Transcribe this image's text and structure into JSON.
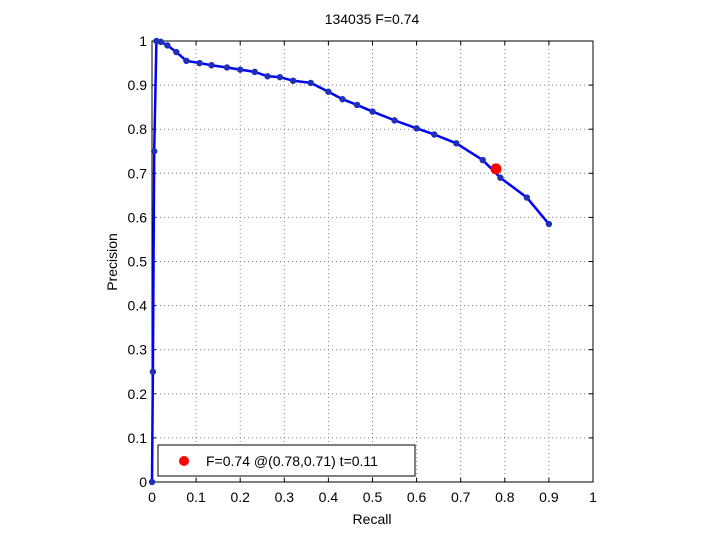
{
  "chart_data": {
    "type": "line",
    "title": "134035 F=0.74",
    "xlabel": "Recall",
    "ylabel": "Precision",
    "xlim": [
      0,
      1
    ],
    "ylim": [
      0,
      1
    ],
    "xticks": [
      "0",
      "0.1",
      "0.2",
      "0.3",
      "0.4",
      "0.5",
      "0.6",
      "0.7",
      "0.8",
      "0.9",
      "1"
    ],
    "yticks": [
      "0",
      "0.1",
      "0.2",
      "0.3",
      "0.4",
      "0.5",
      "0.6",
      "0.7",
      "0.8",
      "0.9",
      "1"
    ],
    "grid": true,
    "legend_placement": "bottom-left",
    "colors": {
      "line": "#0000ff",
      "points": "#1f2fb8",
      "best": "#ff0000",
      "grid": "#808080"
    },
    "series": [
      {
        "x": [
          0,
          0.002,
          0.005,
          0.01,
          0.02,
          0.035,
          0.055,
          0.078,
          0.108,
          0.135,
          0.17,
          0.2,
          0.233,
          0.262,
          0.29,
          0.32,
          0.36,
          0.4,
          0.432,
          0.465,
          0.5,
          0.55,
          0.6,
          0.64,
          0.69,
          0.75,
          0.79,
          0.85,
          0.9
        ],
        "y": [
          0,
          0.25,
          0.75,
          1.0,
          0.998,
          0.99,
          0.975,
          0.955,
          0.95,
          0.945,
          0.94,
          0.935,
          0.93,
          0.92,
          0.918,
          0.91,
          0.905,
          0.885,
          0.868,
          0.855,
          0.84,
          0.82,
          0.802,
          0.788,
          0.768,
          0.73,
          0.69,
          0.645,
          0.585
        ]
      }
    ],
    "best_point": {
      "x": 0.78,
      "y": 0.71
    },
    "legend_label": "F=0.74 @(0.78,0.71) t=0.11"
  }
}
